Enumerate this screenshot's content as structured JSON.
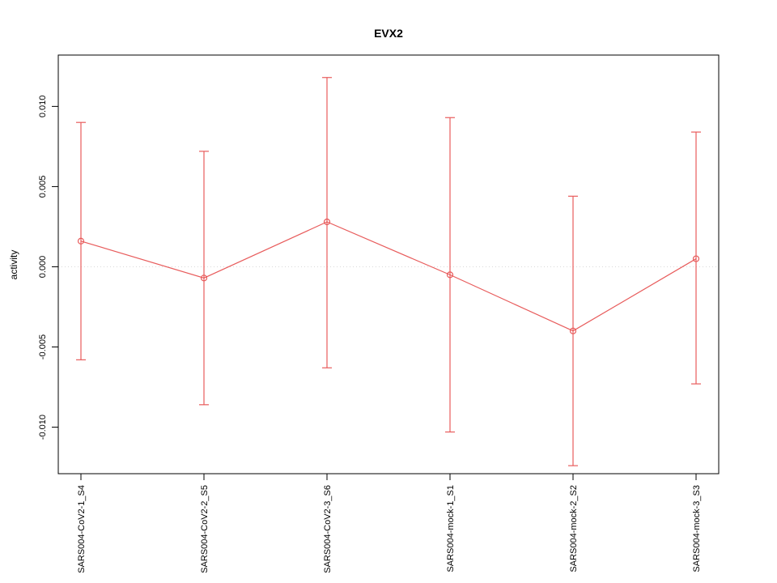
{
  "title": "EVX2",
  "chart_data": {
    "type": "line",
    "title": "EVX2",
    "xlabel": "",
    "ylabel": "activity",
    "categories": [
      "SARS004-CoV2-1_S4",
      "SARS004-CoV2-2_S5",
      "SARS004-CoV2-3_S6",
      "SARS004-mock-1_S1",
      "SARS004-mock-2_S2",
      "SARS004-mock-3_S3"
    ],
    "series": [
      {
        "name": "activity",
        "values": [
          0.0016,
          -0.0007,
          0.0028,
          -0.0005,
          -0.004,
          0.0005
        ],
        "error_low": [
          -0.0058,
          -0.0086,
          -0.0063,
          -0.0103,
          -0.0124,
          -0.0073
        ],
        "error_high": [
          0.009,
          0.0072,
          0.0118,
          0.0093,
          0.0044,
          0.0084
        ]
      }
    ],
    "yticks": [
      -0.01,
      -0.005,
      0.0,
      0.005,
      0.01
    ],
    "ytick_labels": [
      "-0.010",
      "-0.005",
      "0.000",
      "0.005",
      "0.010"
    ],
    "ylim": [
      -0.0129,
      0.0132
    ],
    "grid": "dotted horizontal line at y=0",
    "legend": "none",
    "series_color": "#e85c5c",
    "axis_color": "#000000",
    "grid_color": "#d9d9d9",
    "point_style": "open-circle",
    "error_bars": true
  }
}
